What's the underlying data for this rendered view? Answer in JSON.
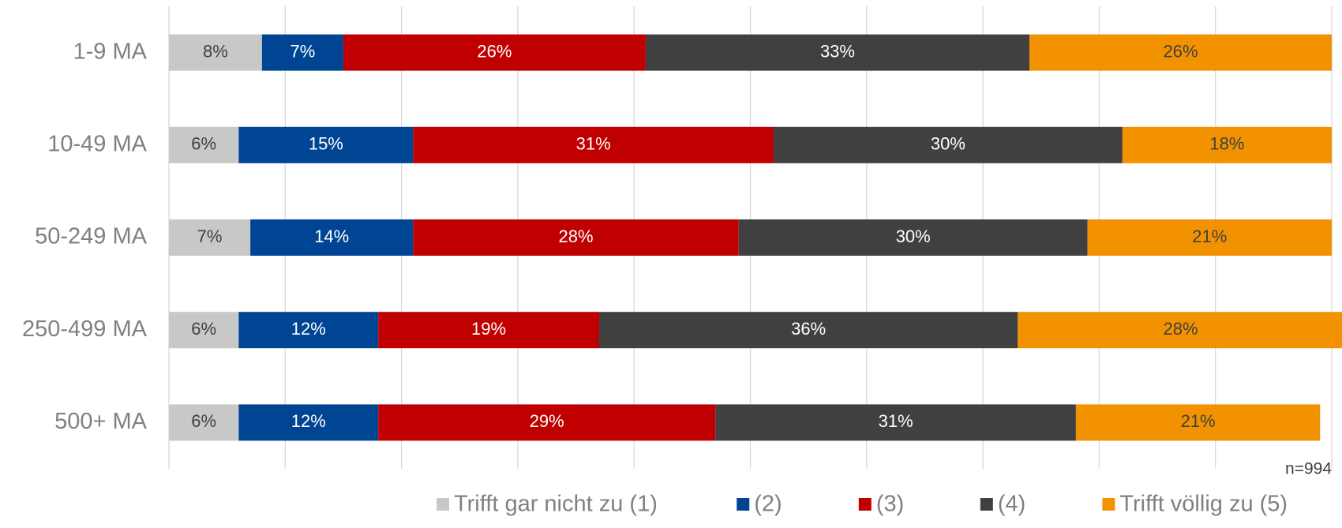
{
  "chart_data": {
    "type": "bar",
    "orientation": "horizontal",
    "stacked": true,
    "categories": [
      "1-9 MA",
      "10-49 MA",
      "50-249 MA",
      "250-499 MA",
      "500+ MA"
    ],
    "series": [
      {
        "name": "Trifft gar nicht zu (1)",
        "color": "#c8c8c8",
        "values": [
          8,
          6,
          7,
          6,
          6
        ],
        "value_labels": [
          "8%",
          "6%",
          "7%",
          "6%",
          "6%"
        ]
      },
      {
        "name": "(2)",
        "color": "#004494",
        "values": [
          7,
          15,
          14,
          12,
          12
        ],
        "value_labels": [
          "7%",
          "15%",
          "14%",
          "12%",
          "12%"
        ]
      },
      {
        "name": "(3)",
        "color": "#c00000",
        "values": [
          26,
          31,
          28,
          19,
          29
        ],
        "value_labels": [
          "26%",
          "31%",
          "28%",
          "19%",
          "29%"
        ]
      },
      {
        "name": "(4)",
        "color": "#404040",
        "values": [
          33,
          30,
          30,
          36,
          31
        ],
        "value_labels": [
          "33%",
          "30%",
          "30%",
          "36%",
          "31%"
        ]
      },
      {
        "name": "Trifft völlig zu (5)",
        "color": "#f39200",
        "values": [
          26,
          18,
          21,
          28,
          21
        ],
        "value_labels": [
          "26%",
          "18%",
          "21%",
          "28%",
          "21%"
        ]
      }
    ],
    "xlim": [
      0,
      100
    ],
    "xticks": [
      0,
      10,
      20,
      30,
      40,
      50,
      60,
      70,
      80,
      90,
      100
    ],
    "grid": true,
    "annotation": "n=994",
    "legend": "bottom"
  }
}
